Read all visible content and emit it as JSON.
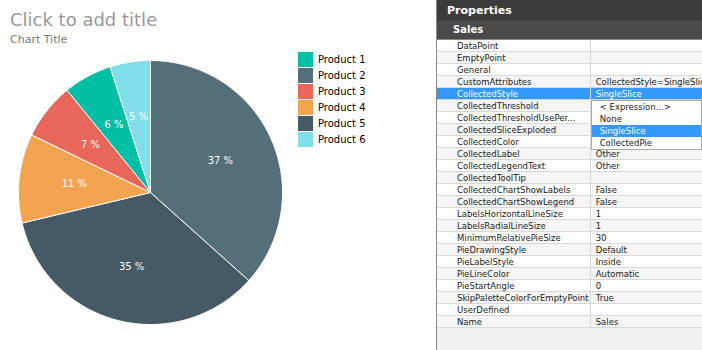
{
  "chart_data": {
    "type": "pie",
    "title": "Click to add title",
    "subtitle": "Chart Title",
    "values": [
      37,
      35,
      11,
      7,
      6,
      5
    ],
    "value_labels": [
      "37 %",
      "35 %",
      "11 %",
      "7 %",
      "6 %",
      "5 %"
    ],
    "colors": [
      "#546e7a",
      "#455a64",
      "#f4a450",
      "#e8675a",
      "#00bfa5",
      "#80deea"
    ],
    "data_labels": true,
    "legend": "upper right",
    "series": [
      {
        "name": "Product 1",
        "color": "#00bfa5"
      },
      {
        "name": "Product 2",
        "color": "#546e7a"
      },
      {
        "name": "Product 3",
        "color": "#e8675a"
      },
      {
        "name": "Product 4",
        "color": "#f4a450"
      },
      {
        "name": "Product 5",
        "color": "#455a64"
      },
      {
        "name": "Product 6",
        "color": "#80deea"
      }
    ]
  },
  "properties": {
    "title": "Properties",
    "section": "Sales",
    "rows": [
      [
        "DataPoint",
        ""
      ],
      [
        "EmptyPoint",
        ""
      ],
      [
        "General",
        ""
      ],
      [
        "CustomAttributes",
        "CollectedStyle=SingleSlice"
      ],
      [
        "CollectedStyle",
        "SingleSlice"
      ],
      [
        "CollectedThreshold",
        ""
      ],
      [
        "CollectedThresholdUsePer...",
        ""
      ],
      [
        "CollectedSliceExploded",
        ""
      ],
      [
        "CollectedColor",
        ""
      ],
      [
        "CollectedLabel",
        "Other"
      ],
      [
        "CollectedLegendText",
        "Other"
      ],
      [
        "CollectedToolTip",
        ""
      ],
      [
        "CollectedChartShowLabels",
        "False"
      ],
      [
        "CollectedChartShowLegend",
        "False"
      ],
      [
        "LabelsHorizontalLineSize",
        "1"
      ],
      [
        "LabelsRadialLineSize",
        "1"
      ],
      [
        "MinimumRelativePieSize",
        "30"
      ],
      [
        "PieDrawingStyle",
        "Default"
      ],
      [
        "PieLabelStyle",
        "Inside"
      ],
      [
        "PieLineColor",
        "Automatic"
      ],
      [
        "PieStartAngle",
        "0"
      ],
      [
        "SkipPaletteColorForEmptyPoint",
        "True"
      ],
      [
        "UserDefined",
        ""
      ],
      [
        "Name",
        "Sales"
      ]
    ],
    "options": [
      "< Expression...>",
      "None",
      "SingleSlice",
      "CollectedPie"
    ],
    "selected": 2
  }
}
